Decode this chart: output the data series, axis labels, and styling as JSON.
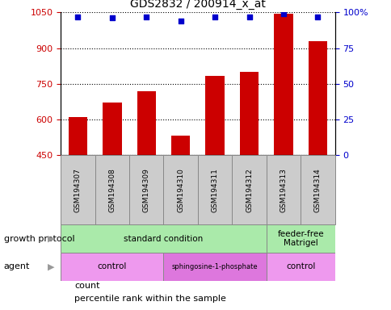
{
  "title": "GDS2832 / 200914_x_at",
  "samples": [
    "GSM194307",
    "GSM194308",
    "GSM194309",
    "GSM194310",
    "GSM194311",
    "GSM194312",
    "GSM194313",
    "GSM194314"
  ],
  "counts": [
    608,
    672,
    718,
    531,
    783,
    800,
    1045,
    930
  ],
  "percentiles": [
    97,
    96,
    97,
    94,
    97,
    97,
    99,
    97
  ],
  "ylim_left": [
    450,
    1050
  ],
  "ylim_right": [
    0,
    100
  ],
  "yticks_left": [
    450,
    600,
    750,
    900,
    1050
  ],
  "yticks_right": [
    0,
    25,
    50,
    75,
    100
  ],
  "bar_color": "#cc0000",
  "dot_color": "#0000cc",
  "growth_protocol": [
    {
      "label": "standard condition",
      "start": 0,
      "end": 6
    },
    {
      "label": "feeder-free\nMatrigel",
      "start": 6,
      "end": 8
    }
  ],
  "agent": [
    {
      "label": "control",
      "start": 0,
      "end": 3
    },
    {
      "label": "sphingosine-1-phosphate",
      "start": 3,
      "end": 6
    },
    {
      "label": "control",
      "start": 6,
      "end": 8
    }
  ],
  "growth_protocol_color": "#aaeaaa",
  "agent_color_light": "#ee99ee",
  "agent_color_dark": "#dd77dd",
  "sample_box_color": "#cccccc",
  "xlabel_row1_label": "growth protocol",
  "xlabel_row2_label": "agent",
  "legend_count_label": "count",
  "legend_pct_label": "percentile rank within the sample",
  "left_axis_color": "#cc0000",
  "right_axis_color": "#0000cc"
}
